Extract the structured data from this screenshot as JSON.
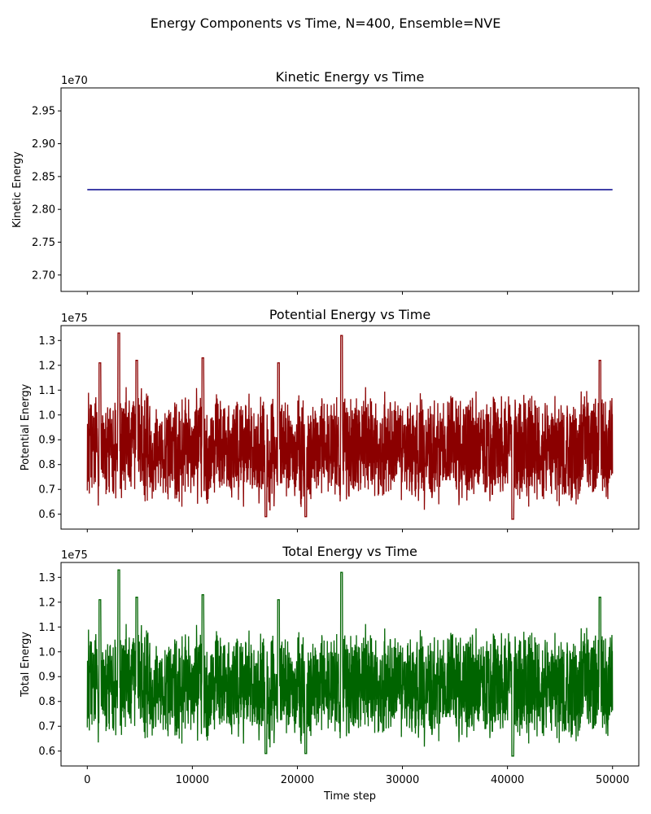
{
  "suptitle": "Energy Components vs Time, N=400, Ensemble=NVE",
  "chart_data": [
    {
      "type": "line",
      "title": "Kinetic Energy vs Time",
      "xlabel": "",
      "ylabel": "Kinetic Energy",
      "offset_label": "1e70",
      "xlim": [
        -2500,
        52500
      ],
      "ylim": [
        2.675,
        2.985
      ],
      "xticks": [
        0,
        10000,
        20000,
        30000,
        40000,
        50000
      ],
      "xtick_labels_visible": false,
      "yticks": [
        2.7,
        2.75,
        2.8,
        2.85,
        2.9,
        2.95
      ],
      "ytick_labels": [
        "2.70",
        "2.75",
        "2.80",
        "2.85",
        "2.90",
        "2.95"
      ],
      "color": "#00008b",
      "grid": false,
      "series": [
        {
          "kind": "constant",
          "x": [
            0,
            50000
          ],
          "y": [
            2.83,
            2.83
          ]
        }
      ]
    },
    {
      "type": "line",
      "title": "Potential Energy vs Time",
      "xlabel": "",
      "ylabel": "Potential Energy",
      "offset_label": "1e75",
      "xlim": [
        -2500,
        52500
      ],
      "ylim": [
        0.54,
        1.36
      ],
      "xticks": [
        0,
        10000,
        20000,
        30000,
        40000,
        50000
      ],
      "xtick_labels_visible": false,
      "yticks": [
        0.6,
        0.7,
        0.8,
        0.9,
        1.0,
        1.1,
        1.2,
        1.3
      ],
      "ytick_labels": [
        "0.6",
        "0.7",
        "0.8",
        "0.9",
        "1.0",
        "1.1",
        "1.2",
        "1.3"
      ],
      "color": "#8b0000",
      "grid": false,
      "series": [
        {
          "kind": "noisy",
          "x_range": [
            0,
            50000
          ],
          "mean": 0.85,
          "low": 0.6,
          "high": 1.15,
          "spikes": [
            {
              "x": 3000,
              "y": 1.33
            },
            {
              "x": 24200,
              "y": 1.32
            },
            {
              "x": 11000,
              "y": 1.23
            },
            {
              "x": 18200,
              "y": 1.21
            },
            {
              "x": 48800,
              "y": 1.22
            },
            {
              "x": 1200,
              "y": 1.21
            },
            {
              "x": 4700,
              "y": 1.22
            },
            {
              "x": 40500,
              "y": 0.58
            },
            {
              "x": 17000,
              "y": 0.59
            },
            {
              "x": 20800,
              "y": 0.59
            }
          ]
        }
      ]
    },
    {
      "type": "line",
      "title": "Total Energy vs Time",
      "xlabel": "Time step",
      "ylabel": "Total Energy",
      "offset_label": "1e75",
      "xlim": [
        -2500,
        52500
      ],
      "ylim": [
        0.54,
        1.36
      ],
      "xticks": [
        0,
        10000,
        20000,
        30000,
        40000,
        50000
      ],
      "xtick_labels": [
        "0",
        "10000",
        "20000",
        "30000",
        "40000",
        "50000"
      ],
      "xtick_labels_visible": true,
      "yticks": [
        0.6,
        0.7,
        0.8,
        0.9,
        1.0,
        1.1,
        1.2,
        1.3
      ],
      "ytick_labels": [
        "0.6",
        "0.7",
        "0.8",
        "0.9",
        "1.0",
        "1.1",
        "1.2",
        "1.3"
      ],
      "color": "#006400",
      "grid": false,
      "series": [
        {
          "kind": "noisy",
          "x_range": [
            0,
            50000
          ],
          "mean": 0.85,
          "low": 0.6,
          "high": 1.15,
          "spikes": [
            {
              "x": 3000,
              "y": 1.33
            },
            {
              "x": 24200,
              "y": 1.32
            },
            {
              "x": 11000,
              "y": 1.23
            },
            {
              "x": 18200,
              "y": 1.21
            },
            {
              "x": 48800,
              "y": 1.22
            },
            {
              "x": 1200,
              "y": 1.21
            },
            {
              "x": 4700,
              "y": 1.22
            },
            {
              "x": 40500,
              "y": 0.58
            },
            {
              "x": 17000,
              "y": 0.59
            },
            {
              "x": 20800,
              "y": 0.59
            }
          ]
        }
      ]
    }
  ]
}
